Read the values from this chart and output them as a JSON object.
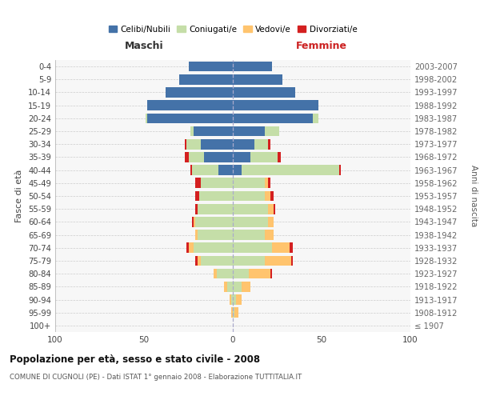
{
  "age_groups": [
    "100+",
    "95-99",
    "90-94",
    "85-89",
    "80-84",
    "75-79",
    "70-74",
    "65-69",
    "60-64",
    "55-59",
    "50-54",
    "45-49",
    "40-44",
    "35-39",
    "30-34",
    "25-29",
    "20-24",
    "15-19",
    "10-14",
    "5-9",
    "0-4"
  ],
  "birth_years": [
    "≤ 1907",
    "1908-1912",
    "1913-1917",
    "1918-1922",
    "1923-1927",
    "1928-1932",
    "1933-1937",
    "1938-1942",
    "1943-1947",
    "1948-1952",
    "1953-1957",
    "1958-1962",
    "1963-1967",
    "1968-1972",
    "1973-1977",
    "1978-1982",
    "1983-1987",
    "1988-1992",
    "1993-1997",
    "1998-2002",
    "2003-2007"
  ],
  "male": {
    "celibi": [
      0,
      0,
      0,
      0,
      0,
      0,
      0,
      0,
      0,
      0,
      0,
      0,
      8,
      16,
      18,
      22,
      48,
      48,
      38,
      30,
      25
    ],
    "coniugati": [
      0,
      0,
      1,
      3,
      9,
      18,
      22,
      20,
      21,
      20,
      19,
      18,
      15,
      9,
      8,
      2,
      1,
      0,
      0,
      0,
      0
    ],
    "vedovi": [
      0,
      1,
      1,
      2,
      2,
      2,
      3,
      1,
      1,
      0,
      0,
      0,
      0,
      0,
      0,
      0,
      0,
      0,
      0,
      0,
      0
    ],
    "divorziati": [
      0,
      0,
      0,
      0,
      0,
      1,
      1,
      0,
      1,
      1,
      2,
      3,
      1,
      2,
      1,
      0,
      0,
      0,
      0,
      0,
      0
    ]
  },
  "female": {
    "nubili": [
      0,
      0,
      0,
      0,
      0,
      0,
      0,
      0,
      0,
      0,
      0,
      0,
      5,
      10,
      12,
      18,
      45,
      48,
      35,
      28,
      22
    ],
    "coniugate": [
      0,
      1,
      2,
      5,
      9,
      18,
      22,
      18,
      20,
      20,
      18,
      18,
      55,
      15,
      8,
      8,
      3,
      0,
      0,
      0,
      0
    ],
    "vedove": [
      0,
      2,
      3,
      5,
      12,
      15,
      10,
      5,
      3,
      3,
      3,
      2,
      0,
      0,
      0,
      0,
      0,
      0,
      0,
      0,
      0
    ],
    "divorziate": [
      0,
      0,
      0,
      0,
      1,
      1,
      2,
      0,
      0,
      1,
      2,
      1,
      1,
      2,
      1,
      0,
      0,
      0,
      0,
      0,
      0
    ]
  },
  "colors": {
    "celibi": "#4472a8",
    "coniugati": "#c5dea8",
    "vedovi": "#ffc46e",
    "divorziati": "#d42020"
  },
  "title": "Popolazione per età, sesso e stato civile - 2008",
  "subtitle": "COMUNE DI CUGNOLI (PE) - Dati ISTAT 1° gennaio 2008 - Elaborazione TUTTITALIA.IT",
  "xlabel_left": "Maschi",
  "xlabel_right": "Femmine",
  "ylabel_left": "Fasce di età",
  "ylabel_right": "Anni di nascita",
  "xlim": 100,
  "bg_color": "#ffffff",
  "plot_bg": "#f7f7f7",
  "grid_color": "#cccccc",
  "legend_labels": [
    "Celibi/Nubili",
    "Coniugati/e",
    "Vedovi/e",
    "Divorziati/e"
  ],
  "xticks": [
    -100,
    -50,
    0,
    50,
    100
  ],
  "xtick_labels": [
    "100",
    "50",
    "0",
    "50",
    "100"
  ]
}
